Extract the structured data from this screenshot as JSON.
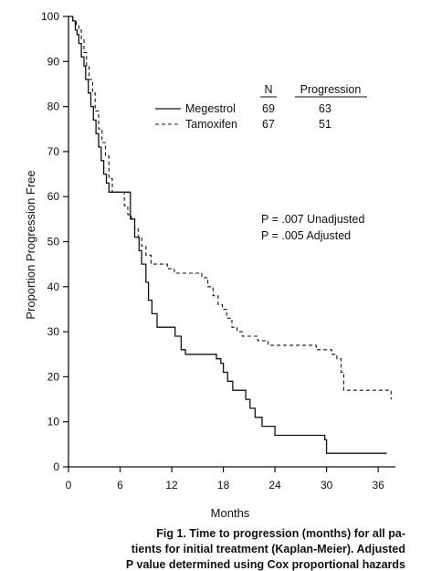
{
  "chart_data": {
    "type": "line",
    "title": "",
    "xlabel": "Months",
    "ylabel": "Proportion Progression Free",
    "xlim": [
      0,
      38
    ],
    "ylim": [
      0,
      100
    ],
    "x_ticks": [
      0,
      6,
      12,
      18,
      24,
      30,
      36
    ],
    "y_ticks": [
      0,
      10,
      20,
      30,
      40,
      50,
      60,
      70,
      80,
      90,
      100
    ],
    "grid": false,
    "legend": {
      "placement": "top-right",
      "headers": {
        "n": "N",
        "progression": "Progression"
      },
      "entries": [
        {
          "name": "Megestrol",
          "n": "69",
          "progression": "63",
          "style": "solid"
        },
        {
          "name": "Tamoxifen",
          "n": "67",
          "progression": "51",
          "style": "dashed"
        }
      ]
    },
    "annotations": [
      {
        "text": "P = .007 Unadjusted"
      },
      {
        "text": "P = .005  Adjusted"
      }
    ],
    "series": [
      {
        "name": "Megestrol",
        "style": "solid",
        "points": [
          [
            0,
            100
          ],
          [
            0.5,
            99
          ],
          [
            0.8,
            97
          ],
          [
            1.0,
            96
          ],
          [
            1.2,
            94
          ],
          [
            1.5,
            91
          ],
          [
            1.8,
            89
          ],
          [
            2.0,
            86
          ],
          [
            2.3,
            83
          ],
          [
            2.6,
            80
          ],
          [
            2.9,
            77
          ],
          [
            3.2,
            74
          ],
          [
            3.5,
            71
          ],
          [
            3.8,
            68
          ],
          [
            4.1,
            65
          ],
          [
            4.4,
            63
          ],
          [
            4.7,
            61
          ],
          [
            7.2,
            55
          ],
          [
            7.7,
            51
          ],
          [
            8.2,
            48
          ],
          [
            8.5,
            45
          ],
          [
            9.0,
            41
          ],
          [
            9.3,
            37
          ],
          [
            9.7,
            34
          ],
          [
            10.3,
            31
          ],
          [
            12.4,
            29
          ],
          [
            13.1,
            26
          ],
          [
            13.6,
            25
          ],
          [
            17.2,
            24
          ],
          [
            17.7,
            23
          ],
          [
            18.0,
            21
          ],
          [
            18.5,
            19
          ],
          [
            19.1,
            17
          ],
          [
            20.6,
            15
          ],
          [
            21.1,
            13
          ],
          [
            21.7,
            11
          ],
          [
            22.5,
            9
          ],
          [
            24.0,
            7
          ],
          [
            29.8,
            6
          ],
          [
            30.0,
            3
          ],
          [
            37,
            3
          ]
        ]
      },
      {
        "name": "Tamoxifen",
        "style": "dashed",
        "points": [
          [
            0,
            100
          ],
          [
            0.5,
            99
          ],
          [
            0.9,
            98
          ],
          [
            1.2,
            97
          ],
          [
            1.5,
            95
          ],
          [
            1.8,
            92
          ],
          [
            2.1,
            89
          ],
          [
            2.4,
            86
          ],
          [
            2.8,
            83
          ],
          [
            3.1,
            79
          ],
          [
            3.5,
            75
          ],
          [
            3.9,
            72
          ],
          [
            4.3,
            69
          ],
          [
            4.7,
            64
          ],
          [
            5.1,
            61
          ],
          [
            6.5,
            58
          ],
          [
            6.9,
            56
          ],
          [
            7.3,
            55
          ],
          [
            7.7,
            53
          ],
          [
            8.1,
            51
          ],
          [
            8.5,
            49
          ],
          [
            9.0,
            47
          ],
          [
            9.6,
            45
          ],
          [
            11.5,
            44
          ],
          [
            12.3,
            43
          ],
          [
            15.5,
            42
          ],
          [
            16.2,
            40
          ],
          [
            16.8,
            38
          ],
          [
            17.4,
            36
          ],
          [
            17.9,
            35
          ],
          [
            18.4,
            33
          ],
          [
            19.0,
            31
          ],
          [
            19.6,
            30
          ],
          [
            20.2,
            29
          ],
          [
            22.0,
            28
          ],
          [
            23.2,
            27
          ],
          [
            28.8,
            26
          ],
          [
            30.6,
            25
          ],
          [
            31.2,
            24
          ],
          [
            31.7,
            21
          ],
          [
            32.0,
            17
          ],
          [
            37.5,
            16
          ],
          [
            37.5,
            15
          ]
        ]
      }
    ]
  },
  "caption": {
    "line1": "Fig 1.   Time to progression (months) for all pa-",
    "line2": "tients for initial treatment (Kaplan-Meier). Adjusted",
    "line3": "P value determined using Cox proportional hazards"
  }
}
